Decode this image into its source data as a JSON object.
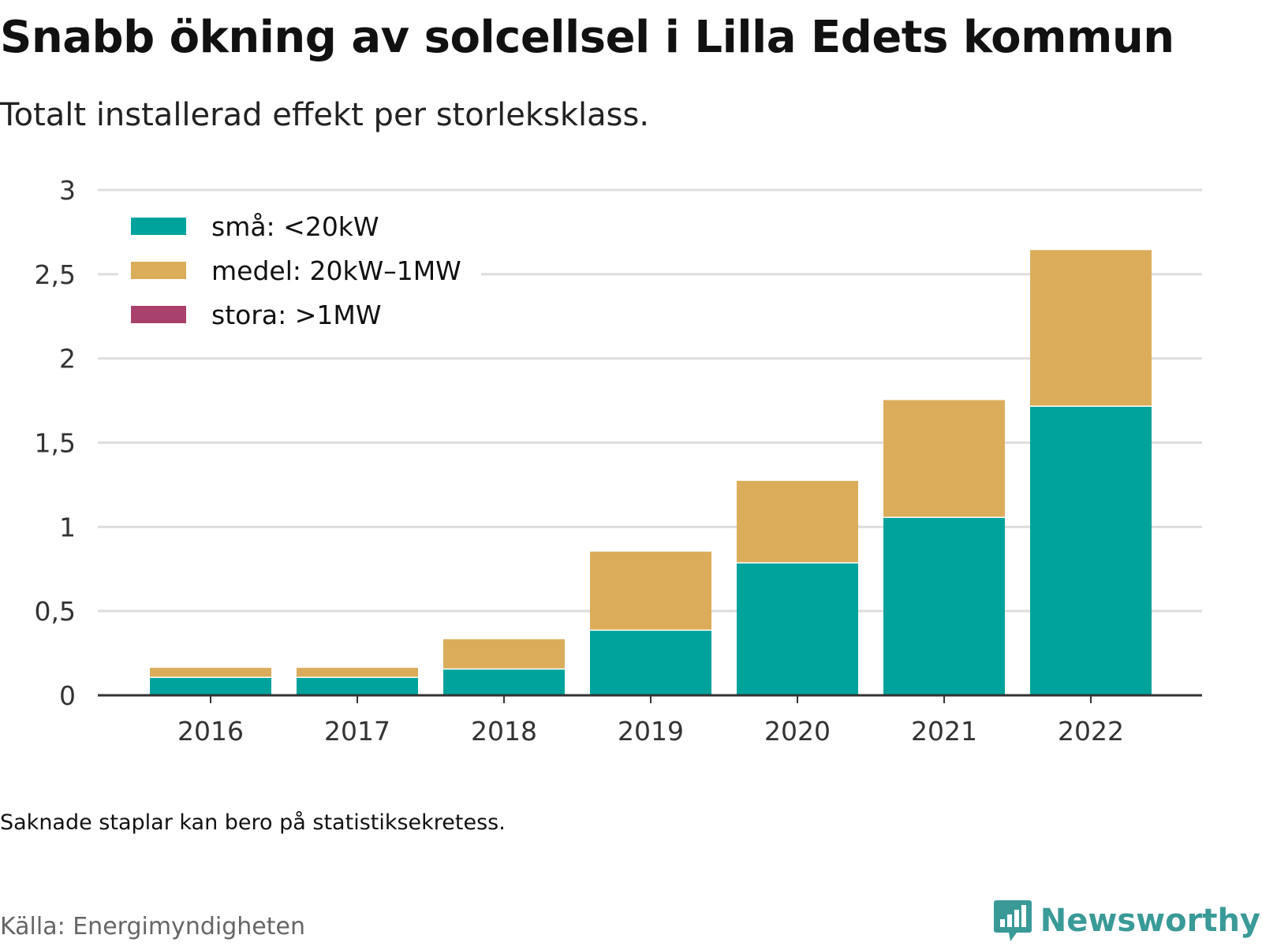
{
  "title": "Snabb ökning av solcellsel i Lilla Edets kommun",
  "subtitle": "Totalt installerad effekt per storleksklass.",
  "footnote": "Saknade staplar kan bero på statistiksekretess.",
  "source": "Källa: Energimyndigheten",
  "brand": "Newsworthy",
  "colors": {
    "sma": "#00a39b",
    "medel": "#dbad5b",
    "stora": "#a8416b",
    "grid": "#dddddd",
    "axis": "#333333",
    "brand": "#3a9a98"
  },
  "chart_data": {
    "type": "bar",
    "stacked": true,
    "categories": [
      "2016",
      "2017",
      "2018",
      "2019",
      "2020",
      "2021",
      "2022"
    ],
    "series": [
      {
        "name": "små: <20kW",
        "color": "#00a39b",
        "values": [
          0.11,
          0.11,
          0.16,
          0.39,
          0.79,
          1.06,
          1.72
        ]
      },
      {
        "name": "medel: 20kW–1MW",
        "color": "#dbad5b",
        "values": [
          0.06,
          0.06,
          0.18,
          0.47,
          0.49,
          0.7,
          0.93
        ]
      },
      {
        "name": "stora: >1MW",
        "color": "#a8416b",
        "values": [
          0,
          0,
          0,
          0,
          0,
          0,
          0
        ]
      }
    ],
    "ylim": [
      0,
      3
    ],
    "yticks": [
      0,
      0.5,
      1,
      1.5,
      2,
      2.5,
      3
    ],
    "ytick_labels": [
      "0",
      "0,5",
      "1",
      "1,5",
      "2",
      "2,5",
      "3"
    ],
    "grid": true,
    "legend_position": "top-left"
  }
}
